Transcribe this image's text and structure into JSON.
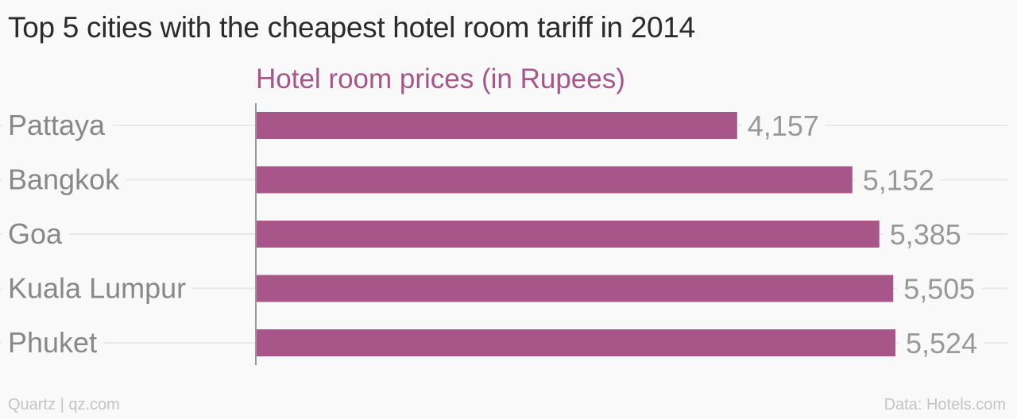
{
  "title": "Top 5 cities with the cheapest hotel room tariff in 2014",
  "footer": {
    "credit": "Quartz | qz.com",
    "source": "Data: Hotels.com"
  },
  "colors": {
    "bar": "#a8568a",
    "category_label": "#888888",
    "value_label": "#999999",
    "gridline": "#e8e8e8",
    "axis": "#999999"
  },
  "chart_data": {
    "type": "bar",
    "orientation": "horizontal",
    "title": "Top 5 cities with the cheapest hotel room tariff in 2014",
    "subtitle": "Hotel room prices (in Rupees)",
    "categories": [
      "Pattaya",
      "Bangkok",
      "Goa",
      "Kuala Lumpur",
      "Phuket"
    ],
    "values": [
      4157,
      5152,
      5385,
      5505,
      5524
    ],
    "value_labels": [
      "4,157",
      "5,152",
      "5,385",
      "5,505",
      "5,524"
    ],
    "xlim": [
      0,
      5524
    ],
    "grid": true,
    "legend": "none"
  }
}
